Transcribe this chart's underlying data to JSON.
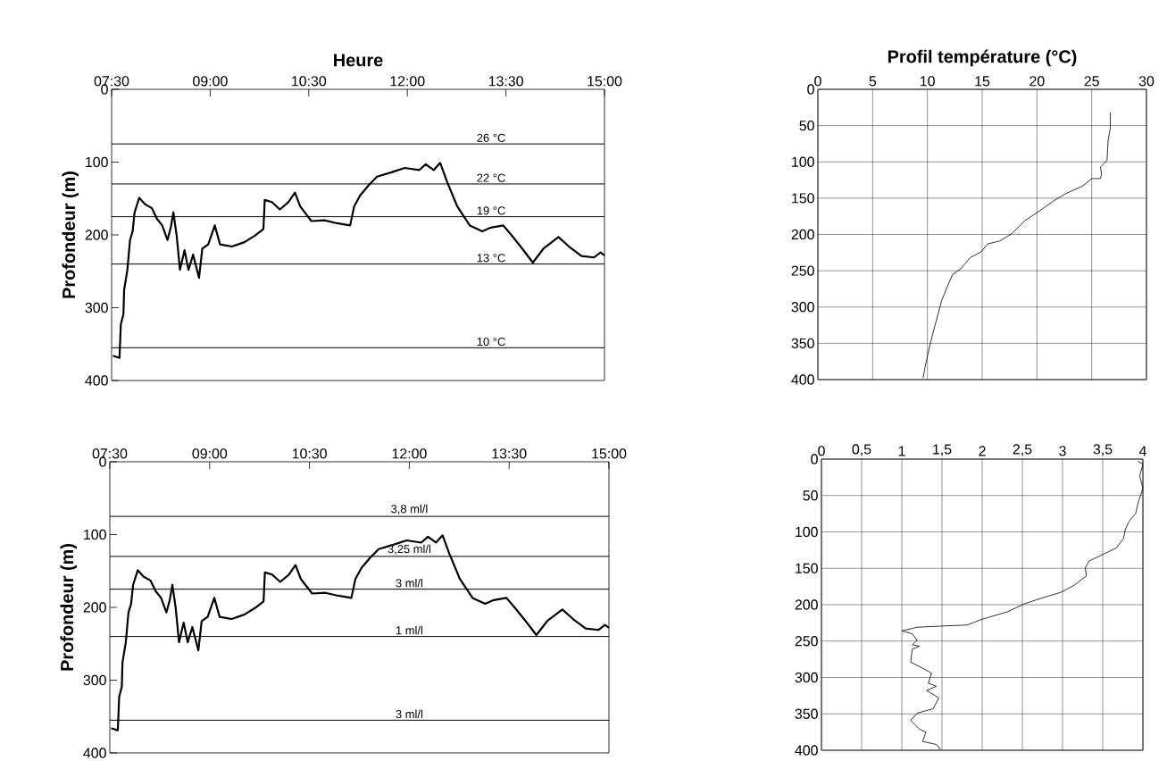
{
  "chart_data": [
    {
      "type": "line",
      "xlabel": "Heure",
      "ylabel": "Profondeur (m)",
      "color": "#000000",
      "x": [
        7.52,
        7.62,
        7.64,
        7.68,
        7.69,
        7.74,
        7.78,
        7.82,
        7.85,
        7.92,
        8.01,
        8.11,
        8.19,
        8.27,
        8.35,
        8.4,
        8.44,
        8.49,
        8.54,
        8.61,
        8.67,
        8.74,
        8.83,
        8.88,
        8.97,
        9.07,
        9.15,
        9.33,
        9.52,
        9.68,
        9.81,
        9.83,
        9.94,
        10.06,
        10.19,
        10.29,
        10.37,
        10.54,
        10.74,
        10.93,
        11.13,
        11.19,
        11.28,
        11.41,
        11.54,
        11.76,
        11.96,
        12.18,
        12.28,
        12.4,
        12.5,
        12.6,
        12.76,
        12.95,
        13.14,
        13.27,
        13.46,
        13.59,
        13.75,
        13.91,
        14.07,
        14.3,
        14.46,
        14.65,
        14.84,
        14.94,
        15.0
      ],
      "values": [
        366,
        369,
        323,
        309,
        276,
        248,
        207,
        195,
        169,
        149,
        158,
        163,
        178,
        187,
        207,
        190,
        169,
        201,
        248,
        221,
        248,
        227,
        259,
        219,
        213,
        187,
        213,
        216,
        210,
        201,
        192,
        152,
        155,
        165,
        155,
        142,
        161,
        181,
        180,
        184,
        187,
        161,
        146,
        132,
        120,
        114,
        108,
        111,
        103,
        111,
        101,
        126,
        161,
        187,
        195,
        190,
        187,
        201,
        219,
        238,
        219,
        203,
        216,
        229,
        231,
        224,
        228
      ],
      "xlim": [
        7.5,
        15
      ],
      "xticks": [
        {
          "value": 7.5,
          "label": "07:30"
        },
        {
          "value": 9,
          "label": "09:00"
        },
        {
          "value": 10.5,
          "label": "10:30"
        },
        {
          "value": 12,
          "label": "12:00"
        },
        {
          "value": 13.5,
          "label": "13:30"
        },
        {
          "value": 15,
          "label": "15:00"
        }
      ],
      "ylim": [
        400,
        0
      ],
      "yticks": [
        0,
        100,
        200,
        300,
        400
      ],
      "ref_lines": [
        {
          "axis": "y",
          "value": 75,
          "label": "26 °C"
        },
        {
          "axis": "y",
          "value": 130,
          "label": "22 °C"
        },
        {
          "axis": "y",
          "value": 175,
          "label": "19 °C"
        },
        {
          "axis": "y",
          "value": 240,
          "label": "13 °C"
        },
        {
          "axis": "y",
          "value": 355,
          "label": "10 °C"
        }
      ]
    },
    {
      "type": "line",
      "xlabel": "Profil température (°C)",
      "color": "#000000",
      "grid": true,
      "x": [
        26.7,
        26.7,
        26.5,
        26.4,
        25.8,
        25.9,
        25.8,
        25.0,
        24.2,
        22.6,
        21.5,
        20.0,
        18.9,
        17.7,
        16.6,
        15.5,
        14.9,
        13.9,
        13.0,
        12.3,
        11.9,
        11.3,
        11.0,
        10.5,
        10.1,
        9.8,
        9.6
      ],
      "values": [
        32,
        53,
        70,
        98,
        107,
        117,
        123,
        123,
        133,
        144,
        154,
        170,
        181,
        199,
        209,
        213,
        224,
        232,
        248,
        255,
        269,
        291,
        308,
        336,
        361,
        382,
        398
      ],
      "xlim": [
        0,
        30
      ],
      "xticks": [
        0,
        5,
        10,
        15,
        20,
        25,
        30
      ],
      "ylim": [
        400,
        0
      ],
      "yticks": [
        0,
        50,
        100,
        150,
        200,
        250,
        300,
        350,
        400
      ]
    },
    {
      "type": "line",
      "ylabel": "Profondeur (m)",
      "color": "#000000",
      "x": [
        7.52,
        7.62,
        7.64,
        7.68,
        7.69,
        7.74,
        7.78,
        7.82,
        7.85,
        7.92,
        8.01,
        8.11,
        8.19,
        8.27,
        8.35,
        8.4,
        8.44,
        8.49,
        8.54,
        8.61,
        8.67,
        8.74,
        8.83,
        8.88,
        8.97,
        9.07,
        9.15,
        9.33,
        9.52,
        9.68,
        9.81,
        9.83,
        9.94,
        10.06,
        10.19,
        10.29,
        10.37,
        10.54,
        10.74,
        10.93,
        11.13,
        11.19,
        11.28,
        11.41,
        11.54,
        11.76,
        11.96,
        12.18,
        12.28,
        12.4,
        12.5,
        12.6,
        12.76,
        12.95,
        13.14,
        13.27,
        13.46,
        13.59,
        13.75,
        13.91,
        14.07,
        14.3,
        14.46,
        14.65,
        14.84,
        14.94,
        15.0
      ],
      "values": [
        366,
        369,
        323,
        309,
        276,
        248,
        207,
        195,
        169,
        149,
        158,
        163,
        178,
        187,
        207,
        190,
        169,
        201,
        248,
        221,
        248,
        227,
        259,
        219,
        213,
        187,
        213,
        216,
        210,
        201,
        192,
        152,
        155,
        165,
        155,
        142,
        161,
        181,
        180,
        184,
        187,
        161,
        146,
        132,
        120,
        114,
        108,
        111,
        103,
        111,
        101,
        126,
        161,
        187,
        195,
        190,
        187,
        201,
        219,
        238,
        219,
        203,
        216,
        229,
        231,
        224,
        228
      ],
      "xlim": [
        7.5,
        15
      ],
      "xticks": [
        {
          "value": 7.5,
          "label": "07:30"
        },
        {
          "value": 9,
          "label": "09:00"
        },
        {
          "value": 10.5,
          "label": "10:30"
        },
        {
          "value": 12,
          "label": "12:00"
        },
        {
          "value": 13.5,
          "label": "13:30"
        },
        {
          "value": 15,
          "label": "15:00"
        }
      ],
      "ylim": [
        400,
        0
      ],
      "yticks": [
        0,
        100,
        200,
        300,
        400
      ],
      "ref_lines": [
        {
          "axis": "y",
          "value": 75,
          "label": "3,8 ml/l"
        },
        {
          "axis": "y",
          "value": 130,
          "label": "3,25 ml/l"
        },
        {
          "axis": "y",
          "value": 175,
          "label": "3 ml/l"
        },
        {
          "axis": "y",
          "value": 240,
          "label": "1 ml/l"
        },
        {
          "axis": "y",
          "value": 355,
          "label": "3 ml/l"
        }
      ]
    },
    {
      "type": "line",
      "color": "#000000",
      "grid": true,
      "x": [
        3.94,
        4.0,
        3.96,
        4.0,
        3.94,
        3.91,
        3.83,
        3.78,
        3.76,
        3.67,
        3.52,
        3.33,
        3.28,
        3.3,
        3.15,
        2.98,
        2.74,
        2.52,
        2.31,
        2.0,
        1.81,
        1.56,
        1.19,
        1.0,
        1.13,
        1.19,
        1.13,
        1.22,
        1.13,
        1.11,
        1.22,
        1.37,
        1.33,
        1.43,
        1.31,
        1.46,
        1.39,
        1.19,
        1.11,
        1.22,
        1.3,
        1.26,
        1.43,
        1.48
      ],
      "values": [
        3,
        7,
        23,
        40,
        60,
        75,
        85,
        97,
        109,
        122,
        130,
        140,
        150,
        160,
        173,
        183,
        191,
        199,
        210,
        220,
        228,
        229,
        231,
        236,
        240,
        249,
        255,
        257,
        261,
        279,
        285,
        294,
        308,
        312,
        318,
        328,
        343,
        349,
        359,
        371,
        375,
        388,
        392,
        399
      ],
      "xlim": [
        0,
        4
      ],
      "xticks": [
        0,
        {
          "value": 0.5,
          "label": "0,5"
        },
        1,
        {
          "value": 1.5,
          "label": "1,5"
        },
        2,
        {
          "value": 2.5,
          "label": "2,5"
        },
        3,
        {
          "value": 3.5,
          "label": "3,5"
        },
        4
      ],
      "ylim": [
        400,
        0
      ],
      "yticks": [
        0,
        50,
        100,
        150,
        200,
        250,
        300,
        350,
        400
      ]
    }
  ]
}
